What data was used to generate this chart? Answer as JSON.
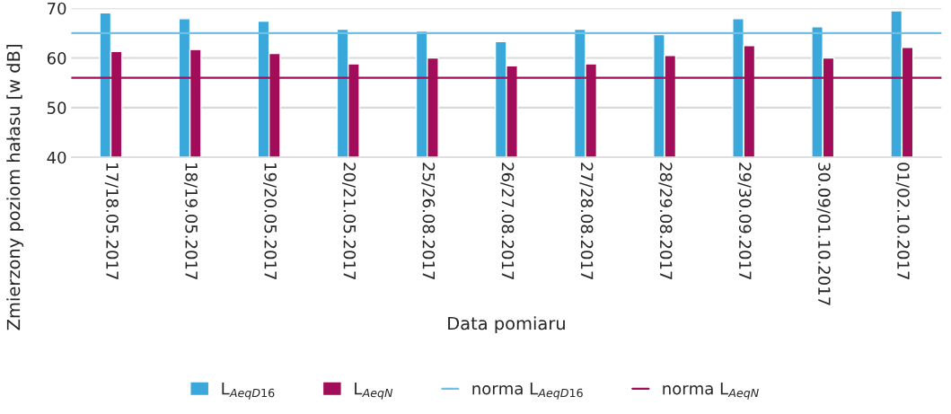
{
  "chart_data": {
    "type": "bar",
    "xlabel": "Data pomiaru",
    "ylabel": "Zmierzony poziom hałasu [w dB]",
    "categories": [
      "17/18.05.2017",
      "18/19.05.2017",
      "19/20.05.2017",
      "20/21.05.2017",
      "25/26.08.2017",
      "26/27.08.2017",
      "27/28.08.2017",
      "28/29.08.2017",
      "29/30.09.2017",
      "30.09/01.10.2017",
      "01/02.10.2017"
    ],
    "series": [
      {
        "name": "L$_{AeqD16}$",
        "color": "#3aa8da",
        "values": [
          69.1,
          67.9,
          67.4,
          65.8,
          65.4,
          63.3,
          65.8,
          64.7,
          67.9,
          66.3,
          69.5
        ]
      },
      {
        "name": "L$_{AeqN}$",
        "color": "#a10d59",
        "values": [
          61.3,
          61.7,
          60.9,
          58.8,
          60.0,
          58.4,
          58.8,
          60.5,
          62.5,
          60.0,
          62.1
        ]
      }
    ],
    "ref_lines": [
      {
        "axis": "y",
        "value": 65,
        "label": "norma L$_{AeqD16}$",
        "color": "#6fbfe6"
      },
      {
        "axis": "y",
        "value": 56,
        "label": "norma L$_{AeqN}$",
        "color": "#a10d59"
      }
    ],
    "ylim": [
      40,
      70
    ],
    "yticks": [
      40,
      50,
      60,
      70
    ],
    "grid": "y",
    "legend": "bottom"
  }
}
